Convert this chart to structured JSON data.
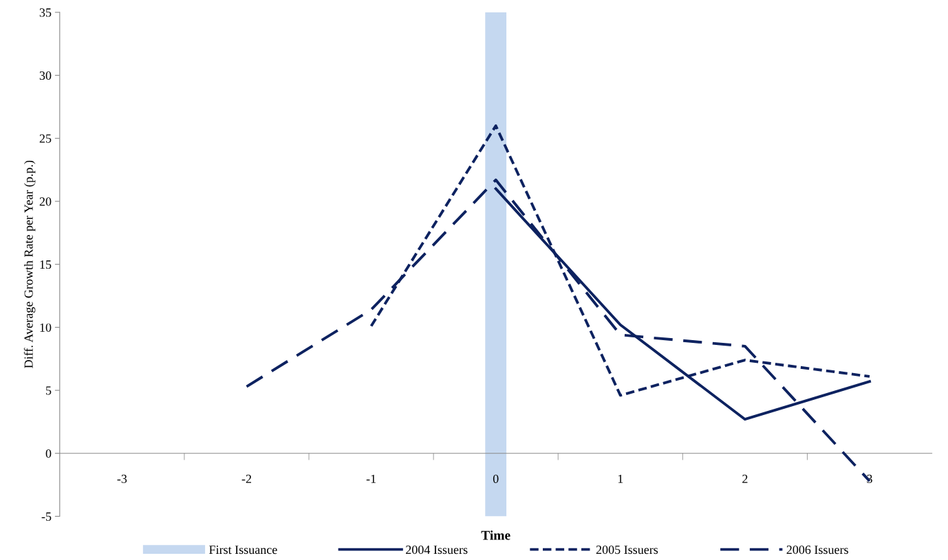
{
  "chart_data": {
    "type": "line",
    "xlabel": "Time",
    "ylabel": "Diff. Average Growth Rate per Year (p.p.)",
    "categories": [
      "-3",
      "-2",
      "-1",
      "0",
      "1",
      "2",
      "3"
    ],
    "ylim": [
      -5,
      35
    ],
    "yticks": [
      -5,
      0,
      5,
      10,
      15,
      20,
      25,
      30,
      35
    ],
    "grid": false,
    "legend": "bottom",
    "marker": "none",
    "series": [
      {
        "name": "First Issuance",
        "type": "bar",
        "color": "#c5d8f0",
        "values": [
          null,
          null,
          null,
          40,
          null,
          null,
          null
        ],
        "base": [
          null,
          null,
          null,
          -5,
          null,
          null,
          null
        ]
      },
      {
        "name": "2004 Issuers",
        "color": "#0d2260",
        "line_style": "solid",
        "values": [
          null,
          null,
          null,
          21,
          10.2,
          2.7,
          5.7
        ]
      },
      {
        "name": "2005 Issuers",
        "color": "#0d2260",
        "line_style": "dotted",
        "values": [
          null,
          null,
          10.1,
          26,
          4.6,
          7.4,
          6.1
        ]
      },
      {
        "name": "2006 Issuers",
        "color": "#0d2260",
        "line_style": "dashed",
        "values": [
          null,
          5.3,
          11.4,
          21.7,
          9.4,
          8.5,
          -2.2
        ]
      }
    ]
  }
}
